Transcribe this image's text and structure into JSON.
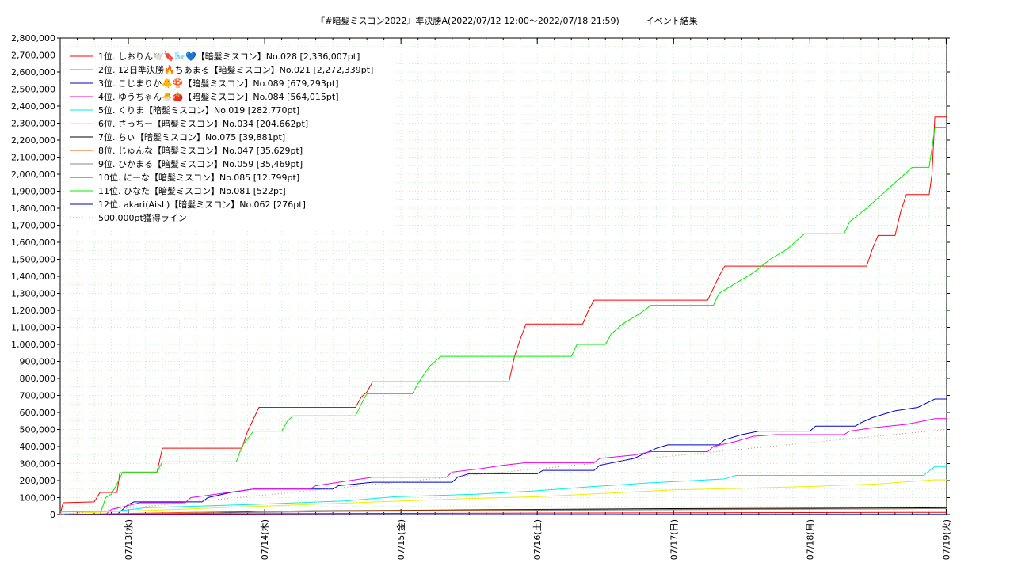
{
  "chart_data": {
    "type": "line",
    "title": "『#暗髪ミスコン2022』準決勝A(2022/07/12 12:00～2022/07/18 21:59)　　　イベント結果",
    "xlabel": "",
    "ylabel": "",
    "ylim": [
      0,
      2800000
    ],
    "yticks": [
      0,
      100000,
      200000,
      300000,
      400000,
      500000,
      600000,
      700000,
      800000,
      900000,
      1000000,
      1100000,
      1200000,
      1300000,
      1400000,
      1500000,
      1600000,
      1700000,
      1800000,
      1900000,
      2000000,
      2100000,
      2200000,
      2300000,
      2400000,
      2500000,
      2600000,
      2700000,
      2800000
    ],
    "ytick_labels": [
      "0",
      "100,000",
      "200,000",
      "300,000",
      "400,000",
      "500,000",
      "600,000",
      "700,000",
      "800,000",
      "900,000",
      "1,000,000",
      "1,100,000",
      "1,200,000",
      "1,300,000",
      "1,400,000",
      "1,500,000",
      "1,600,000",
      "1,700,000",
      "1,800,000",
      "1,900,000",
      "2,000,000",
      "2,100,000",
      "2,200,000",
      "2,300,000",
      "2,400,000",
      "2,500,000",
      "2,600,000",
      "2,700,000",
      "2,800,000"
    ],
    "xlim": [
      "2022-07-12 12:00",
      "2022-07-19 00:05"
    ],
    "xticks": [
      "2022-07-13 00:00",
      "2022-07-14 00:00",
      "2022-07-15 00:00",
      "2022-07-16 00:00",
      "2022-07-17 00:00",
      "2022-07-18 00:00",
      "2022-07-19 00:00"
    ],
    "xtick_labels": [
      "07/13(水)",
      "07/14(木)",
      "07/15(金)",
      "07/16(土)",
      "07/17(日)",
      "07/18(月)",
      "07/19(火)"
    ],
    "grid": true,
    "legend_position": "top-left",
    "series": [
      {
        "name": "1位. しおりん🕊️🔖🌬️💙【暗髪ミスコン】No.028 [2,336,007pt]",
        "color": "#ff0000",
        "points": [
          [
            "2022-07-12 12:00",
            0
          ],
          [
            "2022-07-12 12:30",
            70000
          ],
          [
            "2022-07-12 18:00",
            75000
          ],
          [
            "2022-07-12 19:00",
            130000
          ],
          [
            "2022-07-12 22:00",
            130000
          ],
          [
            "2022-07-12 22:30",
            245000
          ],
          [
            "2022-07-13 05:00",
            245000
          ],
          [
            "2022-07-13 06:00",
            390000
          ],
          [
            "2022-07-13 20:00",
            390000
          ],
          [
            "2022-07-13 21:00",
            490000
          ],
          [
            "2022-07-13 22:00",
            560000
          ],
          [
            "2022-07-13 23:00",
            630000
          ],
          [
            "2022-07-14 16:00",
            630000
          ],
          [
            "2022-07-14 17:00",
            690000
          ],
          [
            "2022-07-14 18:00",
            720000
          ],
          [
            "2022-07-14 19:00",
            780000
          ],
          [
            "2022-07-15 19:00",
            780000
          ],
          [
            "2022-07-15 20:00",
            930000
          ],
          [
            "2022-07-15 21:00",
            1030000
          ],
          [
            "2022-07-15 22:00",
            1120000
          ],
          [
            "2022-07-16 08:00",
            1120000
          ],
          [
            "2022-07-16 09:00",
            1200000
          ],
          [
            "2022-07-16 10:00",
            1260000
          ],
          [
            "2022-07-17 06:00",
            1260000
          ],
          [
            "2022-07-17 07:00",
            1330000
          ],
          [
            "2022-07-17 08:00",
            1400000
          ],
          [
            "2022-07-17 09:00",
            1460000
          ],
          [
            "2022-07-18 10:00",
            1460000
          ],
          [
            "2022-07-18 11:00",
            1560000
          ],
          [
            "2022-07-18 12:00",
            1640000
          ],
          [
            "2022-07-18 15:00",
            1640000
          ],
          [
            "2022-07-18 16:00",
            1780000
          ],
          [
            "2022-07-18 17:00",
            1880000
          ],
          [
            "2022-07-18 21:00",
            1880000
          ],
          [
            "2022-07-18 21:30",
            2000000
          ],
          [
            "2022-07-18 22:00",
            2336007
          ],
          [
            "2022-07-19 00:05",
            2336007
          ]
        ]
      },
      {
        "name": "2位. 12日準決勝🔥ちあまる【暗髪ミスコン】No.021 [2,272,339pt]",
        "color": "#00ee00",
        "points": [
          [
            "2022-07-12 12:00",
            0
          ],
          [
            "2022-07-12 19:00",
            0
          ],
          [
            "2022-07-12 20:00",
            100000
          ],
          [
            "2022-07-12 21:00",
            120000
          ],
          [
            "2022-07-12 22:00",
            180000
          ],
          [
            "2022-07-12 23:00",
            250000
          ],
          [
            "2022-07-13 05:00",
            250000
          ],
          [
            "2022-07-13 06:00",
            310000
          ],
          [
            "2022-07-13 19:00",
            310000
          ],
          [
            "2022-07-13 20:00",
            400000
          ],
          [
            "2022-07-13 22:00",
            490000
          ],
          [
            "2022-07-14 03:00",
            490000
          ],
          [
            "2022-07-14 04:00",
            550000
          ],
          [
            "2022-07-14 05:00",
            580000
          ],
          [
            "2022-07-14 16:00",
            580000
          ],
          [
            "2022-07-14 17:00",
            650000
          ],
          [
            "2022-07-14 18:00",
            710000
          ],
          [
            "2022-07-15 02:00",
            710000
          ],
          [
            "2022-07-15 03:00",
            770000
          ],
          [
            "2022-07-15 04:00",
            820000
          ],
          [
            "2022-07-15 05:00",
            870000
          ],
          [
            "2022-07-15 07:00",
            930000
          ],
          [
            "2022-07-16 06:00",
            930000
          ],
          [
            "2022-07-16 07:00",
            1000000
          ],
          [
            "2022-07-16 12:00",
            1000000
          ],
          [
            "2022-07-16 13:00",
            1060000
          ],
          [
            "2022-07-16 15:00",
            1120000
          ],
          [
            "2022-07-16 18:00",
            1180000
          ],
          [
            "2022-07-16 20:00",
            1230000
          ],
          [
            "2022-07-17 07:00",
            1230000
          ],
          [
            "2022-07-17 08:00",
            1300000
          ],
          [
            "2022-07-17 11:00",
            1360000
          ],
          [
            "2022-07-17 14:00",
            1420000
          ],
          [
            "2022-07-17 17:00",
            1500000
          ],
          [
            "2022-07-17 20:00",
            1560000
          ],
          [
            "2022-07-17 23:00",
            1650000
          ],
          [
            "2022-07-18 06:00",
            1650000
          ],
          [
            "2022-07-18 07:00",
            1720000
          ],
          [
            "2022-07-18 10:00",
            1800000
          ],
          [
            "2022-07-18 12:00",
            1860000
          ],
          [
            "2022-07-18 15:00",
            1950000
          ],
          [
            "2022-07-18 18:00",
            2040000
          ],
          [
            "2022-07-18 21:00",
            2040000
          ],
          [
            "2022-07-18 22:00",
            2272339
          ],
          [
            "2022-07-19 00:05",
            2272339
          ]
        ]
      },
      {
        "name": "3位. こじまりか🐥🍄【暗髪ミスコン】No.089 [679,293pt]",
        "color": "#0000cc",
        "points": [
          [
            "2022-07-12 12:00",
            0
          ],
          [
            "2022-07-12 22:00",
            0
          ],
          [
            "2022-07-13 00:00",
            60000
          ],
          [
            "2022-07-13 01:00",
            75000
          ],
          [
            "2022-07-13 13:00",
            75000
          ],
          [
            "2022-07-13 14:00",
            100000
          ],
          [
            "2022-07-13 18:00",
            130000
          ],
          [
            "2022-07-13 22:00",
            150000
          ],
          [
            "2022-07-14 12:00",
            150000
          ],
          [
            "2022-07-14 13:00",
            170000
          ],
          [
            "2022-07-14 19:00",
            190000
          ],
          [
            "2022-07-15 09:00",
            190000
          ],
          [
            "2022-07-15 10:00",
            220000
          ],
          [
            "2022-07-15 12:00",
            240000
          ],
          [
            "2022-07-16 00:00",
            240000
          ],
          [
            "2022-07-16 01:00",
            260000
          ],
          [
            "2022-07-16 10:00",
            260000
          ],
          [
            "2022-07-16 11:00",
            290000
          ],
          [
            "2022-07-16 14:00",
            310000
          ],
          [
            "2022-07-16 17:00",
            330000
          ],
          [
            "2022-07-16 19:00",
            360000
          ],
          [
            "2022-07-16 21:00",
            390000
          ],
          [
            "2022-07-16 23:00",
            410000
          ],
          [
            "2022-07-17 08:00",
            410000
          ],
          [
            "2022-07-17 09:00",
            440000
          ],
          [
            "2022-07-17 12:00",
            470000
          ],
          [
            "2022-07-17 15:00",
            490000
          ],
          [
            "2022-07-18 00:00",
            490000
          ],
          [
            "2022-07-18 01:00",
            520000
          ],
          [
            "2022-07-18 08:00",
            520000
          ],
          [
            "2022-07-18 09:00",
            540000
          ],
          [
            "2022-07-18 11:00",
            570000
          ],
          [
            "2022-07-18 13:00",
            590000
          ],
          [
            "2022-07-18 15:00",
            610000
          ],
          [
            "2022-07-18 19:00",
            630000
          ],
          [
            "2022-07-18 22:00",
            679293
          ],
          [
            "2022-07-19 00:05",
            679293
          ]
        ]
      },
      {
        "name": "4位. ゆうちゃん🐣🍅【暗髪ミスコン】No.084 [564,015pt]",
        "color": "#ee00ee",
        "points": [
          [
            "2022-07-12 12:00",
            0
          ],
          [
            "2022-07-12 20:00",
            0
          ],
          [
            "2022-07-12 21:00",
            30000
          ],
          [
            "2022-07-12 23:00",
            45000
          ],
          [
            "2022-07-13 02:00",
            70000
          ],
          [
            "2022-07-13 10:00",
            70000
          ],
          [
            "2022-07-13 11:00",
            100000
          ],
          [
            "2022-07-13 22:00",
            150000
          ],
          [
            "2022-07-14 08:00",
            150000
          ],
          [
            "2022-07-14 09:00",
            170000
          ],
          [
            "2022-07-14 15:00",
            200000
          ],
          [
            "2022-07-14 19:00",
            220000
          ],
          [
            "2022-07-15 08:00",
            220000
          ],
          [
            "2022-07-15 09:00",
            250000
          ],
          [
            "2022-07-15 14:00",
            270000
          ],
          [
            "2022-07-15 18:00",
            290000
          ],
          [
            "2022-07-15 22:00",
            305000
          ],
          [
            "2022-07-16 10:00",
            305000
          ],
          [
            "2022-07-16 11:00",
            330000
          ],
          [
            "2022-07-16 17:00",
            350000
          ],
          [
            "2022-07-16 20:00",
            370000
          ],
          [
            "2022-07-17 06:00",
            370000
          ],
          [
            "2022-07-17 07:00",
            400000
          ],
          [
            "2022-07-17 11:00",
            430000
          ],
          [
            "2022-07-17 14:00",
            460000
          ],
          [
            "2022-07-17 18:00",
            470000
          ],
          [
            "2022-07-18 06:00",
            470000
          ],
          [
            "2022-07-18 07:00",
            490000
          ],
          [
            "2022-07-18 11:00",
            510000
          ],
          [
            "2022-07-18 17:00",
            530000
          ],
          [
            "2022-07-18 20:00",
            550000
          ],
          [
            "2022-07-18 22:00",
            564015
          ],
          [
            "2022-07-19 00:05",
            564015
          ]
        ]
      },
      {
        "name": "5位. くりま【暗髪ミスコン】No.019 [282,770pt]",
        "color": "#00eeee",
        "points": [
          [
            "2022-07-12 12:00",
            15000
          ],
          [
            "2022-07-12 22:00",
            20000
          ],
          [
            "2022-07-13 03:00",
            40000
          ],
          [
            "2022-07-13 22:00",
            60000
          ],
          [
            "2022-07-14 14:00",
            80000
          ],
          [
            "2022-07-14 23:00",
            105000
          ],
          [
            "2022-07-15 13:00",
            120000
          ],
          [
            "2022-07-16 00:00",
            140000
          ],
          [
            "2022-07-16 10:00",
            165000
          ],
          [
            "2022-07-16 19:00",
            185000
          ],
          [
            "2022-07-17 09:00",
            210000
          ],
          [
            "2022-07-17 11:00",
            230000
          ],
          [
            "2022-07-18 20:00",
            230000
          ],
          [
            "2022-07-18 22:00",
            282770
          ],
          [
            "2022-07-19 00:05",
            282770
          ]
        ]
      },
      {
        "name": "6位. さっちー【暗髪ミスコン】No.034 [204,662pt]",
        "color": "#eeee00",
        "points": [
          [
            "2022-07-12 12:00",
            5000
          ],
          [
            "2022-07-13 00:00",
            20000
          ],
          [
            "2022-07-13 12:00",
            35000
          ],
          [
            "2022-07-14 00:00",
            50000
          ],
          [
            "2022-07-14 12:00",
            65000
          ],
          [
            "2022-07-15 00:00",
            80000
          ],
          [
            "2022-07-15 12:00",
            95000
          ],
          [
            "2022-07-16 00:00",
            105000
          ],
          [
            "2022-07-16 12:00",
            125000
          ],
          [
            "2022-07-17 00:00",
            145000
          ],
          [
            "2022-07-17 12:00",
            155000
          ],
          [
            "2022-07-18 00:00",
            165000
          ],
          [
            "2022-07-18 12:00",
            180000
          ],
          [
            "2022-07-18 22:00",
            204662
          ],
          [
            "2022-07-19 00:05",
            204662
          ]
        ]
      },
      {
        "name": "7位. ちぃ【暗髪ミスコン】No.075 [39,881pt]",
        "color": "#000000",
        "points": [
          [
            "2022-07-12 12:00",
            0
          ],
          [
            "2022-07-13 12:00",
            5000
          ],
          [
            "2022-07-14 00:00",
            20000
          ],
          [
            "2022-07-15 00:00",
            25000
          ],
          [
            "2022-07-16 00:00",
            30000
          ],
          [
            "2022-07-17 00:00",
            35000
          ],
          [
            "2022-07-18 00:00",
            37000
          ],
          [
            "2022-07-19 00:05",
            39881
          ]
        ]
      },
      {
        "name": "8位. じゅんな【暗髪ミスコン】No.047 [35,629pt]",
        "color": "#ee5500",
        "points": [
          [
            "2022-07-12 12:00",
            0
          ],
          [
            "2022-07-13 06:00",
            10000
          ],
          [
            "2022-07-14 00:00",
            20000
          ],
          [
            "2022-07-15 12:00",
            25000
          ],
          [
            "2022-07-17 00:00",
            30000
          ],
          [
            "2022-07-18 12:00",
            33000
          ],
          [
            "2022-07-19 00:05",
            35629
          ]
        ]
      },
      {
        "name": "9位. ひかまる【暗髪ミスコン】No.059 [35,469pt]",
        "color": "#888888",
        "points": [
          [
            "2022-07-12 12:00",
            0
          ],
          [
            "2022-07-13 12:00",
            8000
          ],
          [
            "2022-07-14 12:00",
            18000
          ],
          [
            "2022-07-16 00:00",
            25000
          ],
          [
            "2022-07-17 12:00",
            30000
          ],
          [
            "2022-07-19 00:05",
            35469
          ]
        ]
      },
      {
        "name": "10位. にーな【暗髪ミスコン】No.085 [12,799pt]",
        "color": "#ff0000",
        "points": [
          [
            "2022-07-12 12:00",
            0
          ],
          [
            "2022-07-14 00:00",
            5000
          ],
          [
            "2022-07-16 00:00",
            9000
          ],
          [
            "2022-07-19 00:05",
            12799
          ]
        ]
      },
      {
        "name": "11位. ひなた【暗髪ミスコン】No.081 [522pt]",
        "color": "#00ee00",
        "points": [
          [
            "2022-07-12 12:00",
            0
          ],
          [
            "2022-07-19 00:05",
            522
          ]
        ]
      },
      {
        "name": "12位. akari(AisL)【暗髪ミスコン】No.062 [276pt]",
        "color": "#0000cc",
        "points": [
          [
            "2022-07-12 12:00",
            0
          ],
          [
            "2022-07-19 00:05",
            276
          ]
        ]
      },
      {
        "name": "500,000pt獲得ライン",
        "color": "#cc8888",
        "dashed": true,
        "points": [
          [
            "2022-07-12 12:00",
            0
          ],
          [
            "2022-07-19 00:05",
            500000
          ]
        ]
      }
    ]
  }
}
